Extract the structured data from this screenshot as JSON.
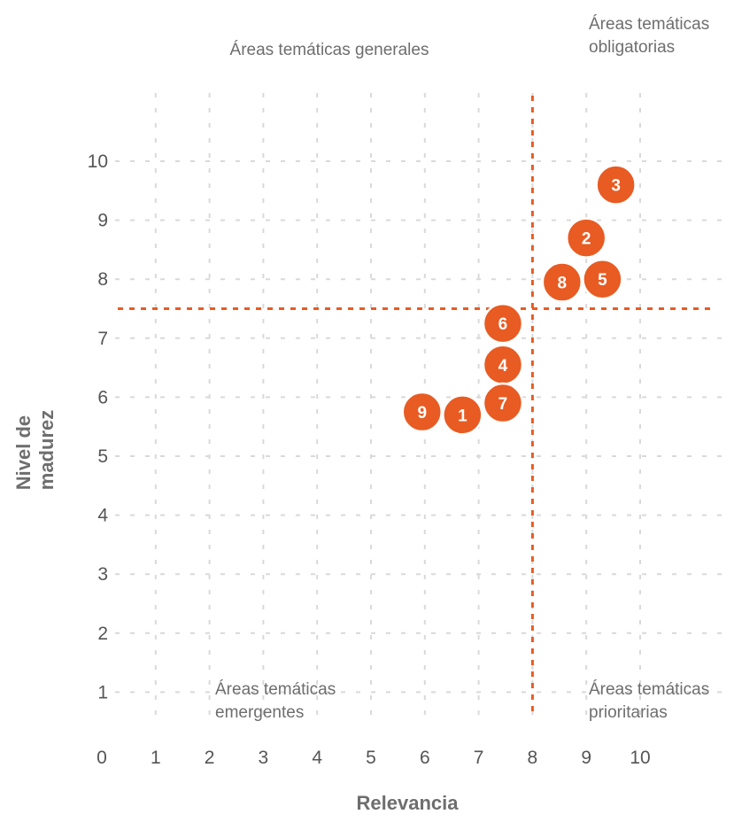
{
  "chart_data": {
    "type": "scatter",
    "xlabel": "Relevancia",
    "ylabel_lines": [
      "Nivel de",
      "madurez"
    ],
    "xlim": [
      0,
      10
    ],
    "ylim": [
      0,
      10
    ],
    "x_ticks": [
      "0",
      "1",
      "2",
      "3",
      "4",
      "5",
      "6",
      "7",
      "8",
      "9",
      "10"
    ],
    "y_ticks": [
      "1",
      "2",
      "3",
      "4",
      "5",
      "6",
      "7",
      "8",
      "9",
      "10"
    ],
    "grid": true,
    "threshold_x": 8.0,
    "threshold_y": 7.5,
    "quadrant_labels": {
      "top_left": [
        "Áreas temáticas generales"
      ],
      "top_right": [
        "Áreas temáticas",
        "obligatorias"
      ],
      "bottom_left": [
        "Áreas temáticas",
        "emergentes"
      ],
      "bottom_right": [
        "Áreas temáticas",
        "prioritarias"
      ]
    },
    "points": [
      {
        "label": "1",
        "x": 6.7,
        "y": 5.7
      },
      {
        "label": "2",
        "x": 9.0,
        "y": 8.7
      },
      {
        "label": "3",
        "x": 9.55,
        "y": 9.6
      },
      {
        "label": "4",
        "x": 7.45,
        "y": 6.55
      },
      {
        "label": "5",
        "x": 9.3,
        "y": 8.0
      },
      {
        "label": "6",
        "x": 7.45,
        "y": 7.25
      },
      {
        "label": "7",
        "x": 7.45,
        "y": 5.9
      },
      {
        "label": "8",
        "x": 8.55,
        "y": 7.95
      },
      {
        "label": "9",
        "x": 5.95,
        "y": 5.75
      }
    ],
    "colors": {
      "point": "#E85B22",
      "threshold": "#E85B22",
      "grid": "#d9d9d9",
      "point_outline": "#ffffff"
    }
  }
}
